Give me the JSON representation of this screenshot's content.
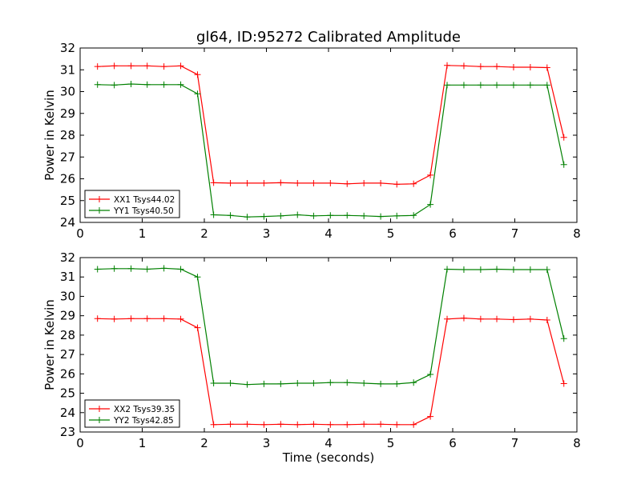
{
  "chart_data": [
    {
      "type": "line",
      "title": "gl64, ID:95272 Calibrated Amplitude",
      "xlabel": "",
      "ylabel": "Power in Kelvin",
      "xlim": [
        0,
        8
      ],
      "ylim": [
        24,
        32
      ],
      "xticks": [
        "0",
        "1",
        "2",
        "3",
        "4",
        "5",
        "6",
        "7",
        "8"
      ],
      "yticks": [
        "24",
        "25",
        "26",
        "27",
        "28",
        "29",
        "30",
        "31",
        "32"
      ],
      "legend_position": "lower-left",
      "x": [
        0.28,
        0.55,
        0.82,
        1.08,
        1.35,
        1.62,
        1.89,
        2.15,
        2.42,
        2.69,
        2.96,
        3.23,
        3.5,
        3.76,
        4.03,
        4.3,
        4.57,
        4.84,
        5.1,
        5.37,
        5.64,
        5.91,
        6.18,
        6.45,
        6.71,
        6.98,
        7.25,
        7.52,
        7.79
      ],
      "series": [
        {
          "name": "XX1 Tsys44.02",
          "color": "#ff0000",
          "values": [
            31.15,
            31.18,
            31.18,
            31.18,
            31.15,
            31.18,
            30.78,
            25.82,
            25.8,
            25.8,
            25.8,
            25.82,
            25.8,
            25.8,
            25.8,
            25.77,
            25.8,
            25.8,
            25.75,
            25.77,
            26.17,
            31.2,
            31.18,
            31.15,
            31.15,
            31.12,
            31.12,
            31.1,
            27.9
          ]
        },
        {
          "name": "YY1 Tsys40.50",
          "color": "#008000",
          "values": [
            30.32,
            30.3,
            30.35,
            30.32,
            30.32,
            30.32,
            29.9,
            24.35,
            24.32,
            24.25,
            24.27,
            24.3,
            24.35,
            24.3,
            24.32,
            24.32,
            24.3,
            24.27,
            24.3,
            24.32,
            24.82,
            30.3,
            30.3,
            30.3,
            30.3,
            30.3,
            30.3,
            30.3,
            26.65
          ]
        }
      ]
    },
    {
      "type": "line",
      "title": "",
      "xlabel": "Time (seconds)",
      "ylabel": "Power in Kelvin",
      "xlim": [
        0,
        8
      ],
      "ylim": [
        23,
        32
      ],
      "xticks": [
        "0",
        "1",
        "2",
        "3",
        "4",
        "5",
        "6",
        "7",
        "8"
      ],
      "yticks": [
        "23",
        "24",
        "25",
        "26",
        "27",
        "28",
        "29",
        "30",
        "31",
        "32"
      ],
      "legend_position": "lower-left",
      "x": [
        0.28,
        0.55,
        0.82,
        1.08,
        1.35,
        1.62,
        1.89,
        2.15,
        2.42,
        2.69,
        2.96,
        3.23,
        3.5,
        3.76,
        4.03,
        4.3,
        4.57,
        4.84,
        5.1,
        5.37,
        5.64,
        5.91,
        6.18,
        6.45,
        6.71,
        6.98,
        7.25,
        7.52,
        7.79
      ],
      "series": [
        {
          "name": "XX2 Tsys39.35",
          "color": "#ff0000",
          "values": [
            28.85,
            28.83,
            28.85,
            28.85,
            28.85,
            28.83,
            28.38,
            23.38,
            23.4,
            23.4,
            23.38,
            23.4,
            23.38,
            23.4,
            23.38,
            23.38,
            23.4,
            23.4,
            23.38,
            23.38,
            23.8,
            28.83,
            28.88,
            28.83,
            28.83,
            28.8,
            28.83,
            28.78,
            25.5
          ]
        },
        {
          "name": "YY2 Tsys42.85",
          "color": "#008000",
          "values": [
            31.4,
            31.43,
            31.43,
            31.4,
            31.45,
            31.4,
            31.0,
            25.52,
            25.52,
            25.45,
            25.48,
            25.48,
            25.52,
            25.52,
            25.55,
            25.55,
            25.52,
            25.48,
            25.48,
            25.55,
            25.97,
            31.4,
            31.38,
            31.38,
            31.4,
            31.38,
            31.38,
            31.38,
            27.82
          ]
        }
      ]
    }
  ]
}
